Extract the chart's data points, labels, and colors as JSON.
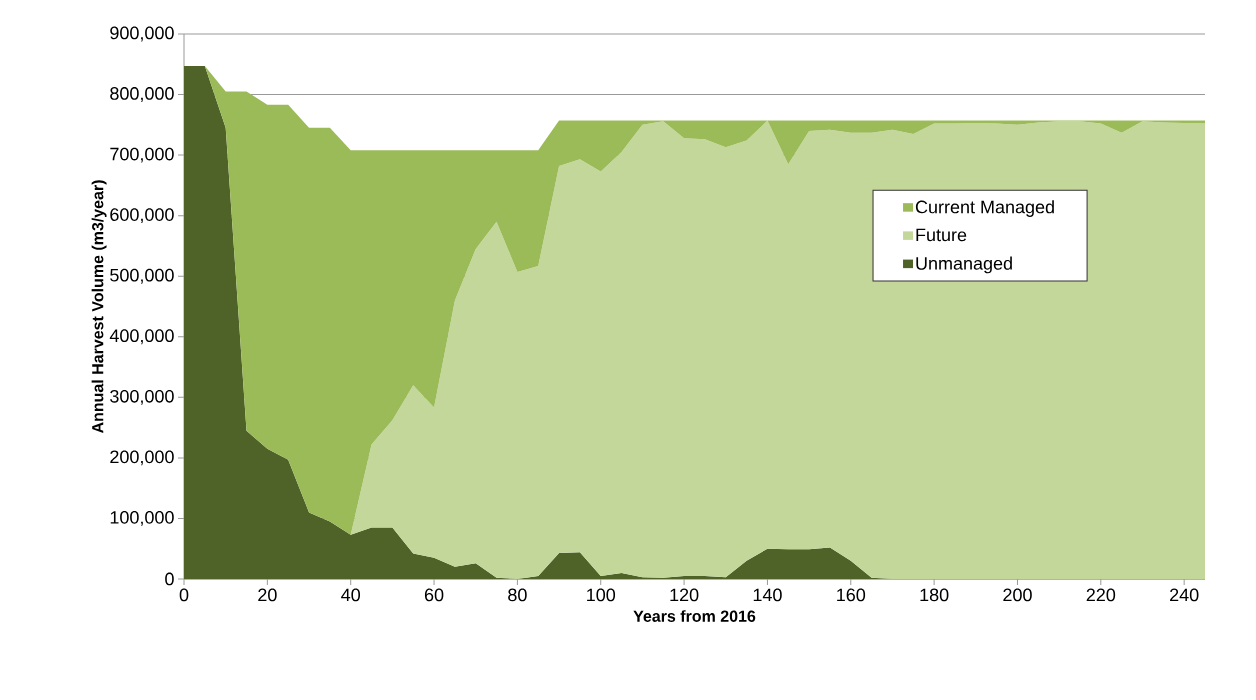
{
  "chart_data": {
    "type": "area",
    "stacked": true,
    "xlabel": "Years from 2016",
    "ylabel": "Annual Harvest Volume (m3/year)",
    "x": [
      0,
      5,
      10,
      15,
      20,
      25,
      30,
      35,
      40,
      45,
      50,
      55,
      60,
      65,
      70,
      75,
      80,
      85,
      90,
      95,
      100,
      105,
      110,
      115,
      120,
      125,
      130,
      135,
      140,
      145,
      150,
      155,
      160,
      165,
      170,
      175,
      180,
      185,
      190,
      195,
      200,
      205,
      210,
      215,
      220,
      225,
      230,
      235,
      240,
      245
    ],
    "series": [
      {
        "name": "Unmanaged",
        "color": "#4f6228",
        "values": [
          847000,
          847000,
          745000,
          245000,
          215000,
          197000,
          110000,
          95000,
          73000,
          85000,
          85000,
          42000,
          35000,
          20000,
          26000,
          2000,
          0,
          5000,
          43000,
          44000,
          5000,
          10000,
          3000,
          2000,
          5000,
          5000,
          3000,
          30000,
          50000,
          49000,
          49000,
          52000,
          30000,
          2000,
          0,
          0,
          0,
          0,
          0,
          0,
          0,
          0,
          0,
          0,
          0,
          0,
          0,
          0,
          0,
          0
        ]
      },
      {
        "name": "Future",
        "color": "#c4d79b",
        "values": [
          null,
          null,
          null,
          null,
          null,
          null,
          null,
          null,
          0,
          137000,
          177000,
          278000,
          248000,
          440000,
          519000,
          588000,
          507000,
          512000,
          639000,
          649000,
          668000,
          695000,
          747000,
          754000,
          723000,
          721000,
          710000,
          694000,
          707000,
          636000,
          691000,
          690000,
          707000,
          735000,
          742000,
          735000,
          752000,
          752000,
          753000,
          752000,
          750000,
          754000,
          756000,
          756000,
          752000,
          737000,
          756000,
          754000,
          753000,
          753000
        ]
      },
      {
        "name": "Current Managed",
        "color": "#9bbb59",
        "values": [
          0,
          0,
          60000,
          560000,
          568000,
          586000,
          635000,
          650000,
          635000,
          486000,
          446000,
          388000,
          425000,
          248000,
          163000,
          118000,
          201000,
          191000,
          75000,
          64000,
          84000,
          52000,
          7000,
          1000,
          29000,
          31000,
          44000,
          33000,
          0,
          72000,
          17000,
          15000,
          20000,
          20000,
          15000,
          22000,
          5000,
          5000,
          4000,
          5000,
          7000,
          3000,
          1000,
          1000,
          5000,
          20000,
          1000,
          3000,
          4000,
          4000
        ]
      }
    ],
    "xlim": [
      0,
      245
    ],
    "xticks": [
      0,
      20,
      40,
      60,
      80,
      100,
      120,
      140,
      160,
      180,
      200,
      220,
      240
    ],
    "ylim": [
      0,
      900000
    ],
    "yticks": [
      {
        "value": 0,
        "label": "0"
      },
      {
        "value": 100000,
        "label": "100,000"
      },
      {
        "value": 200000,
        "label": "200,000"
      },
      {
        "value": 300000,
        "label": "300,000"
      },
      {
        "value": 400000,
        "label": "400,000"
      },
      {
        "value": 500000,
        "label": "500,000"
      },
      {
        "value": 600000,
        "label": "600,000"
      },
      {
        "value": 700000,
        "label": "700,000"
      },
      {
        "value": 800000,
        "label": "800,000"
      },
      {
        "value": 900000,
        "label": "900,000"
      }
    ],
    "grid": "y",
    "legend": "right"
  }
}
